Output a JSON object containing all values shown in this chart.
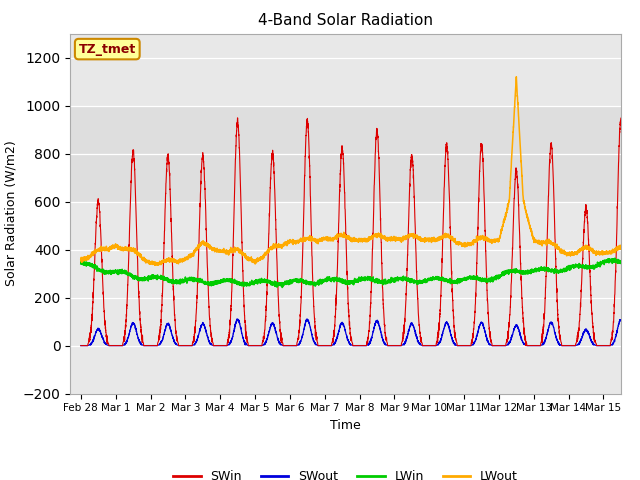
{
  "title": "4-Band Solar Radiation",
  "xlabel": "Time",
  "ylabel": "Solar Radiation (W/m2)",
  "ylim": [
    -200,
    1300
  ],
  "yticks": [
    -200,
    0,
    200,
    400,
    600,
    800,
    1000,
    1200
  ],
  "xlim": [
    -0.3,
    15.5
  ],
  "xtick_labels": [
    "Feb 28",
    "Mar 1",
    "Mar 2",
    "Mar 3",
    "Mar 4",
    "Mar 5",
    "Mar 6",
    "Mar 7",
    "Mar 8",
    "Mar 9",
    "Mar 10",
    "Mar 11",
    "Mar 12",
    "Mar 13",
    "Mar 14",
    "Mar 15"
  ],
  "xtick_positions": [
    0,
    1,
    2,
    3,
    4,
    5,
    6,
    7,
    8,
    9,
    10,
    11,
    12,
    13,
    14,
    15
  ],
  "colors": {
    "SWin": "#dd0000",
    "SWout": "#0000dd",
    "LWin": "#00cc00",
    "LWout": "#ffaa00"
  },
  "background_color": "#e8e8e8",
  "plot_bg_color": "#f0f0f0",
  "shaded_band_lower": 600,
  "shaded_band_upper": 1000,
  "shaded_band_color": "#dcdcdc",
  "grid_color": "#ffffff",
  "label_box_text": "TZ_tmet",
  "label_box_facecolor": "#ffff99",
  "label_box_edgecolor": "#cc8800",
  "label_text_color": "#8B0000",
  "legend_entries": [
    "SWin",
    "SWout",
    "LWin",
    "LWout"
  ],
  "swin_day_peaks": [
    0.6,
    0.81,
    0.79,
    0.79,
    0.935,
    0.8,
    0.935,
    0.82,
    0.895,
    0.79,
    0.835,
    0.835,
    0.73,
    0.84,
    0.57,
    0.935
  ],
  "swin_has_secondary": [
    true,
    true,
    false,
    true,
    false,
    false,
    false,
    true,
    false,
    false,
    false,
    false,
    false,
    false,
    true,
    false
  ],
  "swout_ratio": 0.115,
  "lwin_nodes_x": [
    0,
    0.5,
    1,
    1.5,
    2,
    3,
    4,
    5,
    6,
    7,
    8,
    9,
    10,
    11,
    11.5,
    12,
    12.5,
    13,
    13.5,
    14,
    14.5,
    15,
    15.5
  ],
  "lwin_nodes_y": [
    340,
    320,
    305,
    290,
    280,
    270,
    265,
    262,
    263,
    268,
    272,
    272,
    272,
    275,
    278,
    285,
    315,
    310,
    315,
    320,
    330,
    345,
    350
  ],
  "lwout_nodes_x": [
    0,
    0.5,
    1,
    1.5,
    2,
    2.5,
    3,
    3.5,
    4,
    4.5,
    5,
    5.5,
    6,
    6.5,
    7,
    7.5,
    8,
    8.5,
    9,
    9.5,
    10,
    10.5,
    11,
    11.5,
    12,
    12.3,
    12.5,
    12.7,
    13,
    13.5,
    14,
    14.5,
    15,
    15.5
  ],
  "lwout_nodes_y": [
    355,
    380,
    415,
    380,
    345,
    335,
    360,
    410,
    395,
    380,
    350,
    390,
    435,
    425,
    445,
    440,
    440,
    440,
    445,
    440,
    440,
    440,
    420,
    430,
    440,
    600,
    1100,
    600,
    440,
    410,
    380,
    390,
    385,
    390
  ]
}
